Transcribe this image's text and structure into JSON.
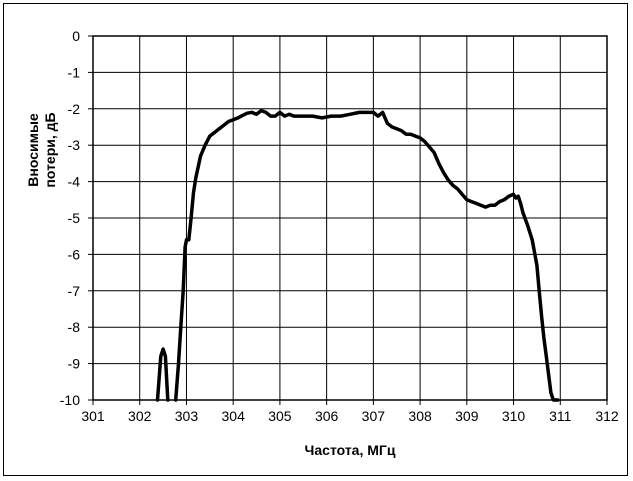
{
  "chart_data": {
    "type": "line",
    "title": "",
    "xlabel": "Частота, МГц",
    "ylabel_lines": [
      "Вносимые",
      "потери, дБ"
    ],
    "xlim": [
      301,
      312
    ],
    "ylim": [
      -10,
      0
    ],
    "x_ticks": [
      "301",
      "302",
      "303",
      "304",
      "305",
      "306",
      "307",
      "308",
      "309",
      "310",
      "311",
      "312"
    ],
    "y_ticks": [
      "0",
      "-1",
      "-2",
      "-3",
      "-4",
      "-5",
      "-6",
      "-7",
      "-8",
      "-9",
      "-10"
    ],
    "grid": true,
    "legend": "none",
    "line_color": "#000000",
    "series": [
      {
        "x": [
          302.38,
          302.45,
          302.5,
          302.55,
          302.6
        ],
        "y": [
          -10,
          -8.8,
          -8.6,
          -8.8,
          -10
        ]
      },
      {
        "x": [
          302.77,
          302.83,
          302.88,
          302.93,
          302.97,
          303.0,
          303.05,
          303.1,
          303.15,
          303.2,
          303.3,
          303.4,
          303.5,
          303.6,
          303.7,
          303.8,
          303.9,
          304.0,
          304.1,
          304.2,
          304.3,
          304.4,
          304.5,
          304.6,
          304.7,
          304.8,
          304.9,
          305.0,
          305.1,
          305.2,
          305.3,
          305.5,
          305.7,
          305.9,
          306.1,
          306.3,
          306.5,
          306.7,
          306.9,
          307.0,
          307.1,
          307.2,
          307.3,
          307.4,
          307.5,
          307.6,
          307.7,
          307.8,
          307.9,
          308.0,
          308.1,
          308.2,
          308.3,
          308.4,
          308.5,
          308.6,
          308.7,
          308.8,
          308.9,
          309.0,
          309.1,
          309.2,
          309.3,
          309.4,
          309.5,
          309.6,
          309.7,
          309.8,
          309.9,
          310.0,
          310.05,
          310.1,
          310.15,
          310.2,
          310.3,
          310.4,
          310.5,
          310.55,
          310.6,
          310.65,
          310.7,
          310.75,
          310.8,
          310.85,
          310.9,
          310.95
        ],
        "y": [
          -10,
          -9.0,
          -8.0,
          -7.0,
          -5.8,
          -5.6,
          -5.6,
          -5.0,
          -4.3,
          -3.9,
          -3.3,
          -3.0,
          -2.75,
          -2.65,
          -2.55,
          -2.45,
          -2.35,
          -2.3,
          -2.25,
          -2.18,
          -2.12,
          -2.1,
          -2.15,
          -2.05,
          -2.1,
          -2.2,
          -2.2,
          -2.1,
          -2.2,
          -2.15,
          -2.2,
          -2.2,
          -2.2,
          -2.25,
          -2.2,
          -2.2,
          -2.15,
          -2.1,
          -2.1,
          -2.1,
          -2.2,
          -2.1,
          -2.4,
          -2.5,
          -2.55,
          -2.6,
          -2.7,
          -2.7,
          -2.75,
          -2.8,
          -2.9,
          -3.05,
          -3.2,
          -3.5,
          -3.75,
          -3.95,
          -4.1,
          -4.2,
          -4.35,
          -4.5,
          -4.55,
          -4.6,
          -4.65,
          -4.7,
          -4.65,
          -4.65,
          -4.55,
          -4.5,
          -4.4,
          -4.35,
          -4.45,
          -4.4,
          -4.6,
          -4.85,
          -5.2,
          -5.6,
          -6.3,
          -7.0,
          -7.7,
          -8.3,
          -8.8,
          -9.3,
          -9.8,
          -10.0,
          -10.0,
          -10.0
        ]
      }
    ]
  }
}
